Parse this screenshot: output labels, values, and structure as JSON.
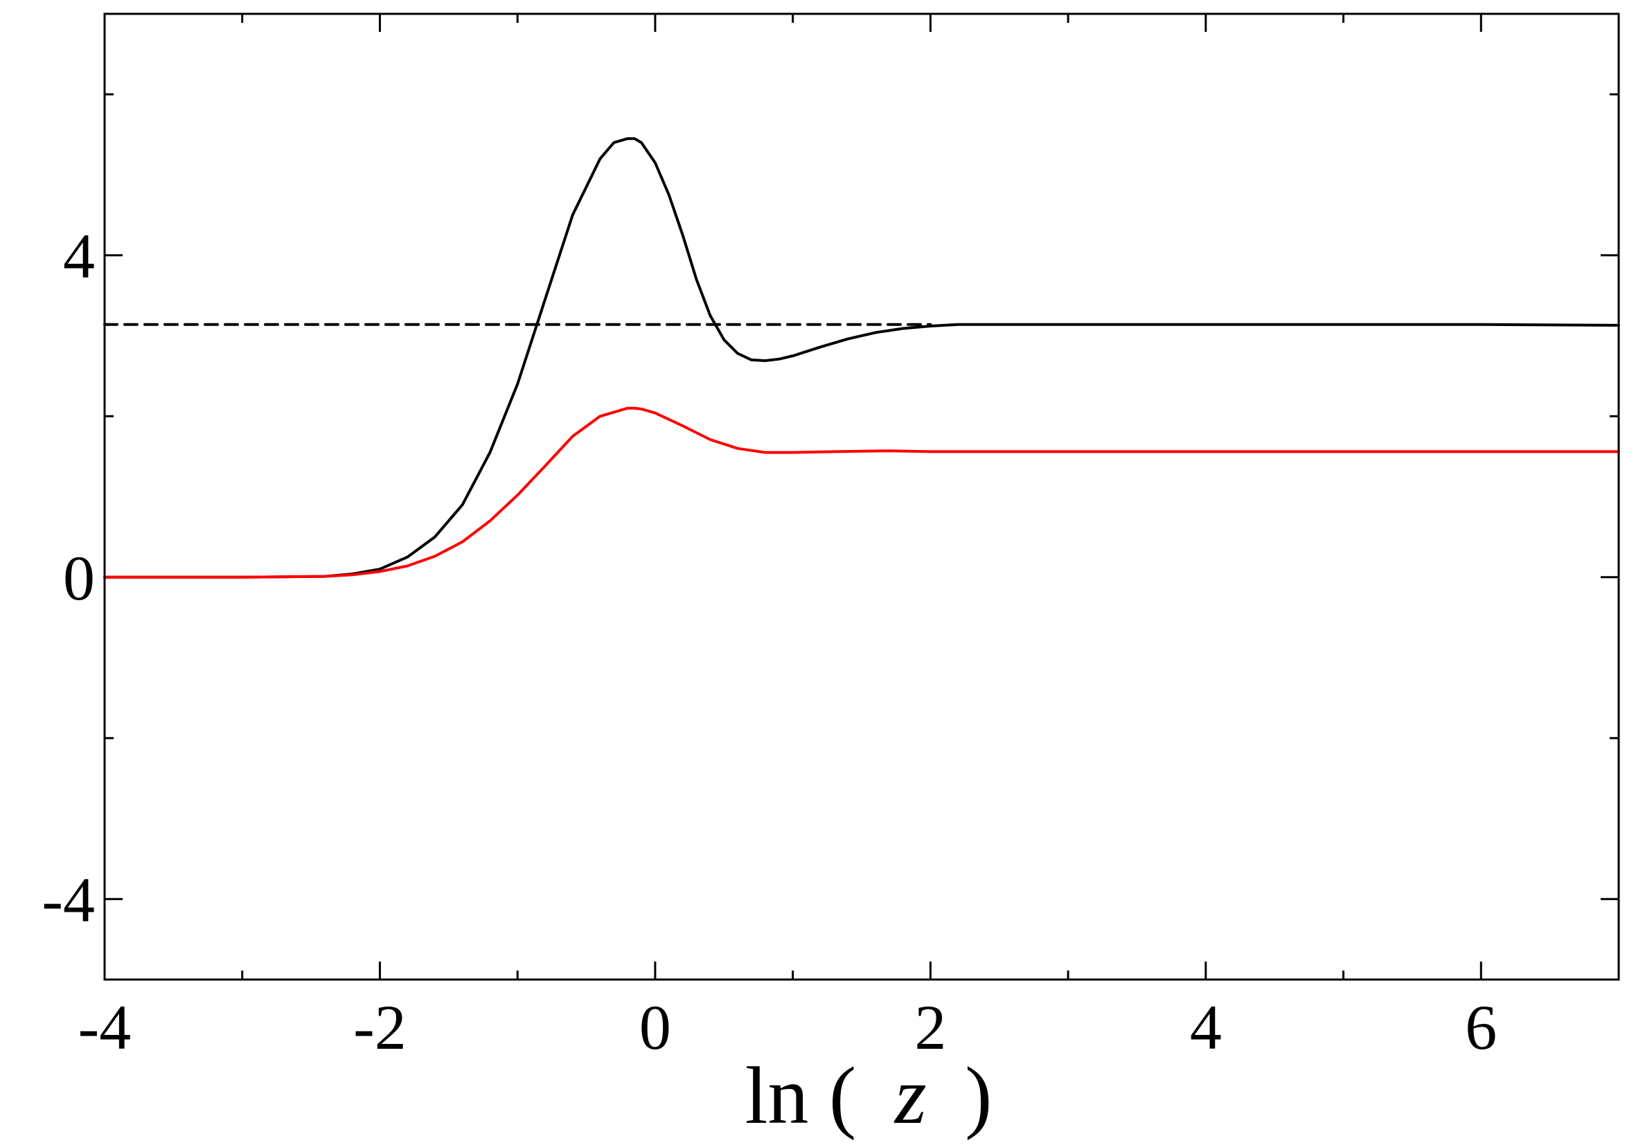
{
  "chart_data": {
    "type": "line",
    "xlabel": "ln ( z )",
    "xlabel_parts": {
      "fn": "ln (",
      "var": "z",
      "close": ")"
    },
    "ylabel": "",
    "xlim": [
      -4,
      7
    ],
    "ylim": [
      -5,
      7
    ],
    "x_major_ticks": [
      -4,
      -2,
      0,
      2,
      4,
      6
    ],
    "x_major_labels": [
      "-4",
      "-2",
      "0",
      "2",
      "4",
      "6"
    ],
    "x_minor_ticks": [
      -3,
      -1,
      1,
      3,
      5
    ],
    "y_major_ticks": [
      -4,
      0,
      4
    ],
    "y_major_labels": [
      "-4",
      "0",
      "4"
    ],
    "y_minor_ticks": [
      -2,
      2,
      6
    ],
    "grid": false,
    "series": [
      {
        "color": "#000000",
        "style": "solid",
        "x": [
          -4,
          -3,
          -2.4,
          -2.2,
          -2.0,
          -1.8,
          -1.6,
          -1.4,
          -1.2,
          -1.0,
          -0.8,
          -0.6,
          -0.4,
          -0.3,
          -0.2,
          -0.15,
          -0.1,
          0.0,
          0.1,
          0.2,
          0.3,
          0.4,
          0.5,
          0.6,
          0.7,
          0.8,
          0.9,
          1.0,
          1.2,
          1.4,
          1.6,
          1.8,
          2.0,
          2.2,
          2.5,
          3,
          4,
          5,
          6,
          7
        ],
        "y": [
          0,
          0,
          0.01,
          0.04,
          0.1,
          0.25,
          0.5,
          0.9,
          1.55,
          2.4,
          3.45,
          4.5,
          5.2,
          5.4,
          5.45,
          5.45,
          5.4,
          5.15,
          4.75,
          4.25,
          3.7,
          3.25,
          2.95,
          2.78,
          2.7,
          2.69,
          2.71,
          2.75,
          2.86,
          2.96,
          3.04,
          3.09,
          3.12,
          3.14,
          3.14,
          3.14,
          3.14,
          3.14,
          3.14,
          3.13
        ]
      },
      {
        "color": "#ff0000",
        "style": "solid",
        "x": [
          -4,
          -3,
          -2.4,
          -2.2,
          -2.0,
          -1.8,
          -1.6,
          -1.4,
          -1.2,
          -1.0,
          -0.8,
          -0.6,
          -0.4,
          -0.2,
          -0.15,
          -0.1,
          0.0,
          0.2,
          0.4,
          0.6,
          0.8,
          1.0,
          1.3,
          1.7,
          2.0,
          3,
          4,
          5,
          6,
          7
        ],
        "y": [
          0,
          0,
          0.01,
          0.03,
          0.07,
          0.14,
          0.26,
          0.44,
          0.7,
          1.02,
          1.38,
          1.75,
          2.0,
          2.1,
          2.1,
          2.09,
          2.04,
          1.88,
          1.71,
          1.6,
          1.55,
          1.55,
          1.56,
          1.57,
          1.56,
          1.56,
          1.56,
          1.56,
          1.56,
          1.56
        ]
      },
      {
        "color": "#000000",
        "style": "dashed",
        "x": [
          -4,
          2
        ],
        "y": [
          3.14,
          3.14
        ]
      }
    ]
  }
}
